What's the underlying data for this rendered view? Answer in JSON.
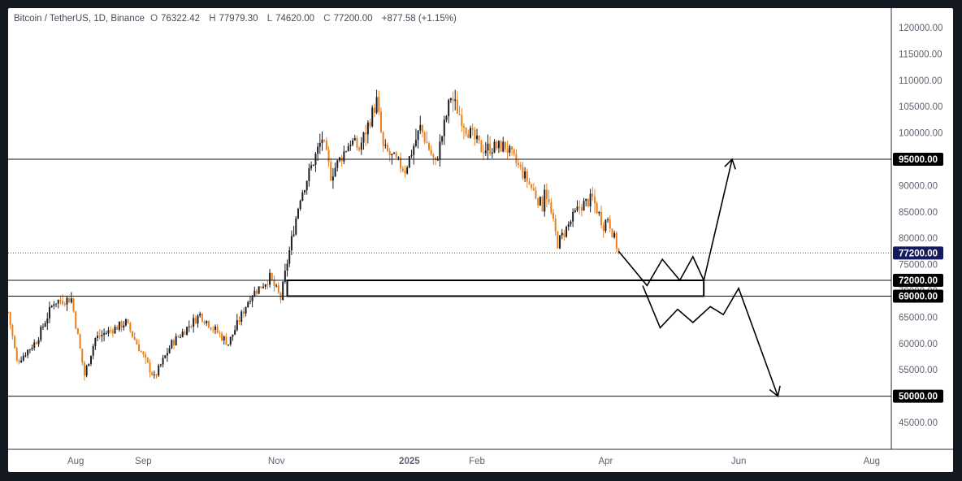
{
  "header": {
    "symbol": "Bitcoin / TetherUS, 1D, Binance",
    "open_label": "O",
    "open": "76322.42",
    "high_label": "H",
    "high": "77979.30",
    "low_label": "L",
    "low": "74620.00",
    "close_label": "C",
    "close": "77200.00",
    "change": "+877.58 (+1.15%)"
  },
  "chart_data": {
    "type": "candlestick",
    "title": "Bitcoin / TetherUS, 1D, Binance",
    "ylim": [
      40000,
      125000
    ],
    "y_ticks": [
      "45000.00",
      "50000.00",
      "55000.00",
      "60000.00",
      "65000.00",
      "70000.00",
      "75000.00",
      "80000.00",
      "85000.00",
      "90000.00",
      "95000.00",
      "100000.00",
      "105000.00",
      "110000.00",
      "115000.00",
      "120000.00"
    ],
    "x_ticks": [
      "Aug",
      "Sep",
      "Nov",
      "2025",
      "Feb",
      "Apr",
      "Jun",
      "Aug"
    ],
    "x_tick_dates": [
      "2024-08-01",
      "2024-09-01",
      "2024-11-01",
      "2025-01-01",
      "2025-02-01",
      "2025-04-01",
      "2025-06-01",
      "2025-08-01"
    ],
    "date_range": [
      "2024-07-01",
      "2025-08-10"
    ],
    "last_price": 77200.0,
    "last_price_label": "77200.00",
    "horizontal_levels": [
      {
        "price": 95000,
        "label": "95000.00"
      },
      {
        "price": 72000,
        "label": "72000.00"
      },
      {
        "price": 69000,
        "label": "69000.00"
      },
      {
        "price": 50000,
        "label": "50000.00"
      }
    ],
    "zone": {
      "from_date": "2024-11-06",
      "to_date": "2025-05-16",
      "low": 69000,
      "high": 72000
    },
    "projection_up": [
      {
        "date": "2025-04-07",
        "price": 77500
      },
      {
        "date": "2025-04-20",
        "price": 71000
      },
      {
        "date": "2025-04-27",
        "price": 76000
      },
      {
        "date": "2025-05-05",
        "price": 72000
      },
      {
        "date": "2025-05-11",
        "price": 76500
      },
      {
        "date": "2025-05-16",
        "price": 72000
      },
      {
        "date": "2025-05-29",
        "price": 95000
      }
    ],
    "projection_down": [
      {
        "date": "2025-04-18",
        "price": 71000
      },
      {
        "date": "2025-04-26",
        "price": 63000
      },
      {
        "date": "2025-05-04",
        "price": 66500
      },
      {
        "date": "2025-05-11",
        "price": 64000
      },
      {
        "date": "2025-05-19",
        "price": 67000
      },
      {
        "date": "2025-05-25",
        "price": 65500
      },
      {
        "date": "2025-06-01",
        "price": 70500
      },
      {
        "date": "2025-06-19",
        "price": 50000
      }
    ],
    "price_anchors": [
      {
        "date": "2024-07-01",
        "price": 66000
      },
      {
        "date": "2024-07-05",
        "price": 56500
      },
      {
        "date": "2024-07-14",
        "price": 60500
      },
      {
        "date": "2024-07-22",
        "price": 68000
      },
      {
        "date": "2024-07-30",
        "price": 68500
      },
      {
        "date": "2024-08-05",
        "price": 54000
      },
      {
        "date": "2024-08-10",
        "price": 61000
      },
      {
        "date": "2024-08-24",
        "price": 64000
      },
      {
        "date": "2024-09-06",
        "price": 53500
      },
      {
        "date": "2024-09-14",
        "price": 60000
      },
      {
        "date": "2024-09-27",
        "price": 65500
      },
      {
        "date": "2024-10-10",
        "price": 60000
      },
      {
        "date": "2024-10-20",
        "price": 69000
      },
      {
        "date": "2024-10-29",
        "price": 72500
      },
      {
        "date": "2024-11-03",
        "price": 68500
      },
      {
        "date": "2024-11-06",
        "price": 75500
      },
      {
        "date": "2024-11-12",
        "price": 88000
      },
      {
        "date": "2024-11-22",
        "price": 99000
      },
      {
        "date": "2024-11-26",
        "price": 92000
      },
      {
        "date": "2024-12-05",
        "price": 98500
      },
      {
        "date": "2024-12-09",
        "price": 97000
      },
      {
        "date": "2024-12-17",
        "price": 106000
      },
      {
        "date": "2024-12-20",
        "price": 97000
      },
      {
        "date": "2024-12-30",
        "price": 93000
      },
      {
        "date": "2025-01-06",
        "price": 101000
      },
      {
        "date": "2025-01-13",
        "price": 94000
      },
      {
        "date": "2025-01-20",
        "price": 107000
      },
      {
        "date": "2025-01-27",
        "price": 101000
      },
      {
        "date": "2025-02-03",
        "price": 97000
      },
      {
        "date": "2025-02-14",
        "price": 97500
      },
      {
        "date": "2025-02-24",
        "price": 91000
      },
      {
        "date": "2025-03-03",
        "price": 86000
      },
      {
        "date": "2025-03-04",
        "price": 90000
      },
      {
        "date": "2025-03-10",
        "price": 79000
      },
      {
        "date": "2025-03-20",
        "price": 86000
      },
      {
        "date": "2025-03-26",
        "price": 87500
      },
      {
        "date": "2025-03-31",
        "price": 82500
      },
      {
        "date": "2025-04-02",
        "price": 84000
      },
      {
        "date": "2025-04-07",
        "price": 77200
      }
    ]
  }
}
